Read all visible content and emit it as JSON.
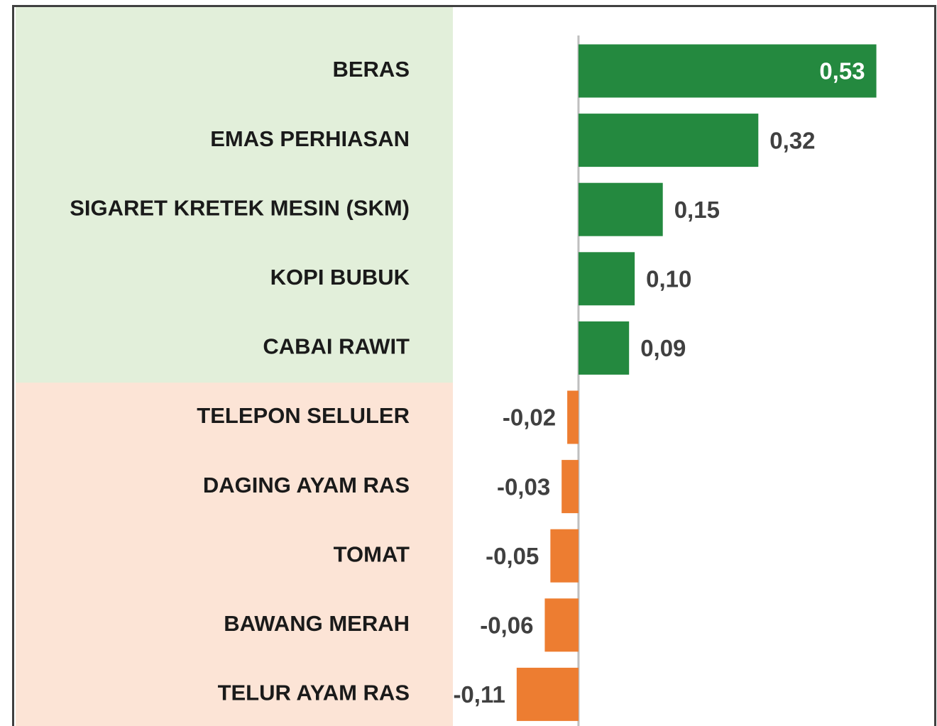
{
  "chart_data": {
    "type": "barh",
    "categories": [
      "BERAS",
      "EMAS PERHIASAN",
      "SIGARET KRETEK MESIN (SKM)",
      "KOPI BUBUK",
      "CABAI RAWIT",
      "TELEPON SELULER",
      "DAGING AYAM RAS",
      "TOMAT",
      "BAWANG MERAH",
      "TELUR AYAM RAS"
    ],
    "values": [
      0.53,
      0.32,
      0.15,
      0.1,
      0.09,
      -0.02,
      -0.03,
      -0.05,
      -0.06,
      -0.11
    ],
    "value_labels": [
      "0,53",
      "0,32",
      "0,15",
      "0,10",
      "0,09",
      "-0,02",
      "-0,03",
      "-0,05",
      "-0,06",
      "-0,11"
    ],
    "positive_color": "#24893f",
    "negative_color": "#ed7d31",
    "xlim": [
      -0.25,
      0.6
    ]
  }
}
